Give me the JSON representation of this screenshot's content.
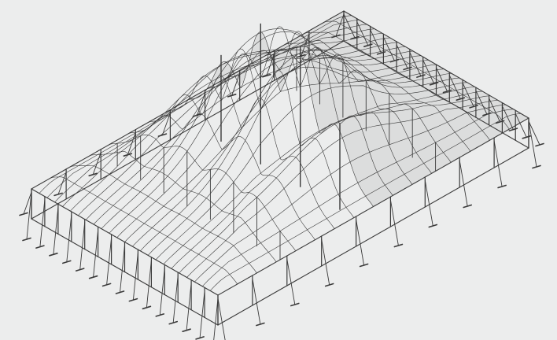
{
  "diagram": {
    "subject": "pole-tent-frame-wireframe",
    "colors": {
      "background": "#eceded",
      "line": "#3a3a3a",
      "shade": "#cfd0d0"
    },
    "frame": {
      "peak_poles_along_ridge": 4,
      "side_poles_long": 14,
      "side_poles_short": 9,
      "roof_bays_long": 24,
      "roof_bays_short": 16
    }
  }
}
